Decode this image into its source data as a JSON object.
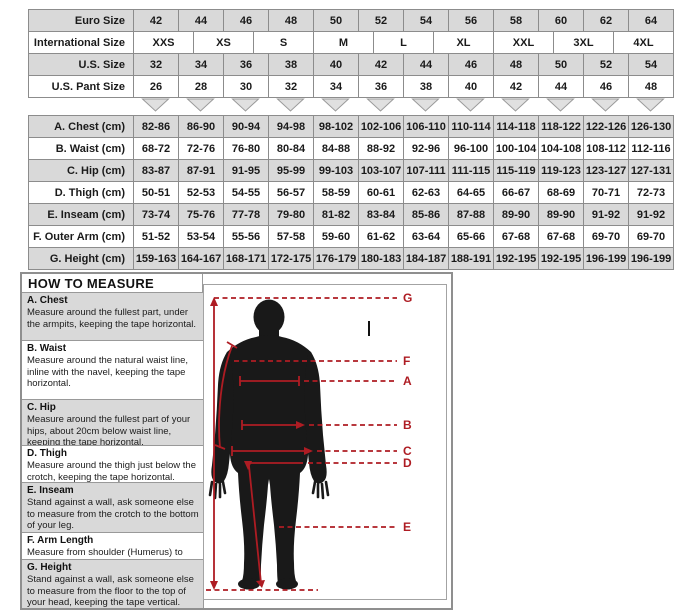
{
  "size_table": {
    "rows": [
      {
        "label": "Euro Size",
        "values": [
          "42",
          "44",
          "46",
          "48",
          "50",
          "52",
          "54",
          "56",
          "58",
          "60",
          "62",
          "64"
        ]
      },
      {
        "label": "International Size",
        "values": [
          "XXS",
          "XS",
          "S",
          "M",
          "L",
          "XL",
          "XXL",
          "3XL",
          "4XL"
        ]
      },
      {
        "label": "U.S. Size",
        "values": [
          "32",
          "34",
          "36",
          "38",
          "40",
          "42",
          "44",
          "46",
          "48",
          "50",
          "52",
          "54"
        ]
      },
      {
        "label": "U.S. Pant Size",
        "values": [
          "26",
          "28",
          "30",
          "32",
          "34",
          "36",
          "38",
          "40",
          "42",
          "44",
          "46",
          "48"
        ]
      }
    ]
  },
  "measurement_table": {
    "rows": [
      {
        "label": "A. Chest (cm)",
        "values": [
          "82-86",
          "86-90",
          "90-94",
          "94-98",
          "98-102",
          "102-106",
          "106-110",
          "110-114",
          "114-118",
          "118-122",
          "122-126",
          "126-130"
        ]
      },
      {
        "label": "B. Waist (cm)",
        "values": [
          "68-72",
          "72-76",
          "76-80",
          "80-84",
          "84-88",
          "88-92",
          "92-96",
          "96-100",
          "100-104",
          "104-108",
          "108-112",
          "112-116"
        ]
      },
      {
        "label": "C. Hip (cm)",
        "values": [
          "83-87",
          "87-91",
          "91-95",
          "95-99",
          "99-103",
          "103-107",
          "107-111",
          "111-115",
          "115-119",
          "119-123",
          "123-127",
          "127-131"
        ]
      },
      {
        "label": "D. Thigh (cm)",
        "values": [
          "50-51",
          "52-53",
          "54-55",
          "56-57",
          "58-59",
          "60-61",
          "62-63",
          "64-65",
          "66-67",
          "68-69",
          "70-71",
          "72-73"
        ]
      },
      {
        "label": "E. Inseam (cm)",
        "values": [
          "73-74",
          "75-76",
          "77-78",
          "79-80",
          "81-82",
          "83-84",
          "85-86",
          "87-88",
          "89-90",
          "89-90",
          "91-92",
          "91-92"
        ]
      },
      {
        "label": "F. Outer Arm (cm)",
        "values": [
          "51-52",
          "53-54",
          "55-56",
          "57-58",
          "59-60",
          "61-62",
          "63-64",
          "65-66",
          "67-68",
          "67-68",
          "69-70",
          "69-70"
        ]
      },
      {
        "label": "G. Height (cm)",
        "values": [
          "159-163",
          "164-167",
          "168-171",
          "172-175",
          "176-179",
          "180-183",
          "184-187",
          "188-191",
          "192-195",
          "192-195",
          "196-199",
          "196-199"
        ]
      }
    ]
  },
  "how_to_measure": {
    "title": "HOW TO MEASURE",
    "items": [
      {
        "label": "A. Chest",
        "text": "Measure around the fullest part, under the armpits, keeping the tape horizontal."
      },
      {
        "label": "B. Waist",
        "text": "Measure around the natural waist line, inline with the navel, keeping the tape horizontal."
      },
      {
        "label": "C. Hip",
        "text": "Measure around the fullest part of your hips, about 20cm below waist line, keeping the tape horizontal."
      },
      {
        "label": "D. Thigh",
        "text": "Measure around the thigh just below the crotch, keeping the tape horizontal."
      },
      {
        "label": "E. Inseam",
        "text": "Stand against a wall, ask someone else to measure from the crotch to the bottom of your leg."
      },
      {
        "label": "F. Arm Length",
        "text": "Measure from shoulder (Humerus) to wrist."
      },
      {
        "label": "G. Height",
        "text": "Stand against a wall, ask someone else to measure from the floor to the top of your head, keeping the tape vertical."
      }
    ],
    "figure_labels": [
      "G",
      "F",
      "A",
      "B",
      "C",
      "D",
      "E"
    ]
  },
  "colors": {
    "row_shaded": "#d9d9d9",
    "table_border": "#8c8c8c",
    "measure_red": "#ae1c23",
    "silhouette": "#191919"
  }
}
